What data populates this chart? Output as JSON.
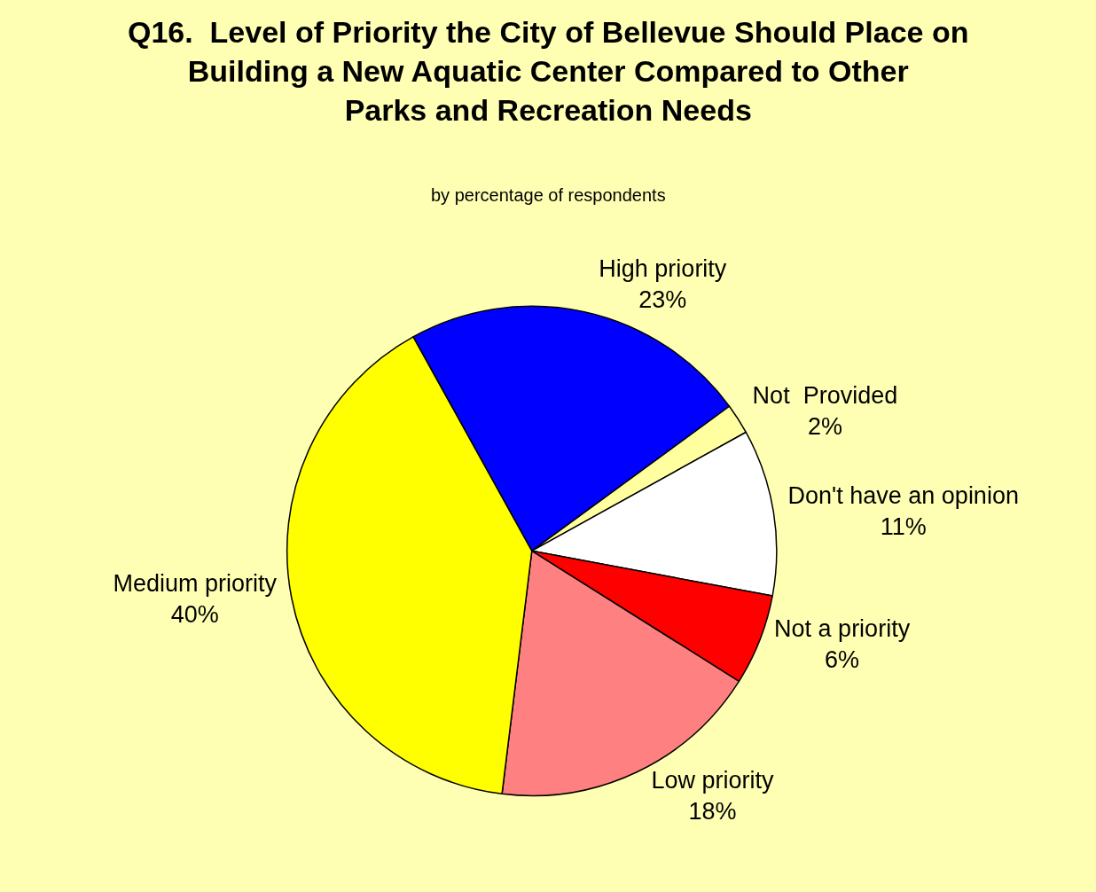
{
  "chart_data": {
    "type": "pie",
    "title": "Q16.  Level of Priority the City of Bellevue Should Place on\nBuilding a New Aquatic Center Compared to Other\nParks and Recreation Needs",
    "subtitle": "by percentage of respondents",
    "categories": [
      "High priority",
      "Not  Provided",
      "Don't have an opinion",
      "Not a priority",
      "Low priority",
      "Medium priority"
    ],
    "values": [
      23,
      2,
      11,
      6,
      18,
      40
    ],
    "value_labels": [
      "23%",
      "2%",
      "11%",
      "6%",
      "18%",
      "40%"
    ],
    "colors": [
      "#0000ff",
      "#ffffa0",
      "#ffffff",
      "#ff0000",
      "#ff8080",
      "#ffff00"
    ],
    "legend": false
  }
}
